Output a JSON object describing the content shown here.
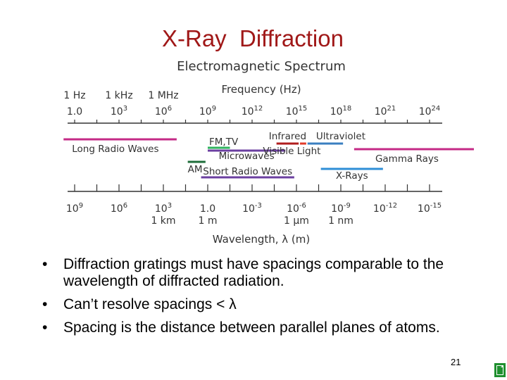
{
  "slide": {
    "title": "X-Ray  Diffraction",
    "page_number": "21",
    "bullets": [
      "Diffraction gratings must have spacings comparable to the wavelength of diffracted radiation.",
      "Can’t resolve spacings < λ",
      "Spacing is the distance between parallel planes of atoms."
    ]
  },
  "diagram": {
    "title": "Electromagnetic Spectrum",
    "frequency_axis_label": "Frequency (Hz)",
    "wavelength_axis_label": "Wavelength, λ (m)",
    "frequency_unit_labels": [
      {
        "text": "1 Hz",
        "tick": 0
      },
      {
        "text": "1 kHz",
        "tick": 1
      },
      {
        "text": "1 MHz",
        "tick": 2
      }
    ],
    "frequency_ticks": [
      {
        "base": "1.0",
        "exp": ""
      },
      {
        "base": "10",
        "exp": "3"
      },
      {
        "base": "10",
        "exp": "6"
      },
      {
        "base": "10",
        "exp": "9"
      },
      {
        "base": "10",
        "exp": "12"
      },
      {
        "base": "10",
        "exp": "15"
      },
      {
        "base": "10",
        "exp": "18"
      },
      {
        "base": "10",
        "exp": "21"
      },
      {
        "base": "10",
        "exp": "24"
      }
    ],
    "wavelength_ticks": [
      {
        "base": "10",
        "exp": "9",
        "unit": ""
      },
      {
        "base": "10",
        "exp": "6",
        "unit": ""
      },
      {
        "base": "10",
        "exp": "3",
        "unit": "1 km"
      },
      {
        "base": "1.0",
        "exp": "",
        "unit": "1 m"
      },
      {
        "base": "10",
        "exp": "-3",
        "unit": ""
      },
      {
        "base": "10",
        "exp": "-6",
        "unit": "1 μm"
      },
      {
        "base": "10",
        "exp": "-9",
        "unit": "1 nm"
      },
      {
        "base": "10",
        "exp": "-12",
        "unit": ""
      },
      {
        "base": "10",
        "exp": "-15",
        "unit": ""
      }
    ],
    "bands": [
      {
        "name": "Long Radio Waves",
        "color": "#c42a86",
        "start": -0.25,
        "end": 2.3
      },
      {
        "name": "AM",
        "color": "#1e6e3a",
        "start": 2.55,
        "end": 2.95
      },
      {
        "name": "FM,TV",
        "color": "#2fb35e",
        "start": 3.0,
        "end": 3.5
      },
      {
        "name": "Microwaves",
        "color": "#6b3fa0",
        "start": 3.0,
        "end": 4.75
      },
      {
        "name": "Short Radio Waves",
        "color": "#6b3fa0",
        "start": 2.85,
        "end": 4.95
      },
      {
        "name": "Infrared",
        "color": "#b01e1e",
        "start": 4.55,
        "end": 5.05
      },
      {
        "name": "Visible Light",
        "color": "#e03a2a",
        "start": 5.08,
        "end": 5.22
      },
      {
        "name": "Ultraviolet",
        "color": "#3a7fc0",
        "start": 5.25,
        "end": 6.05
      },
      {
        "name": "X-Rays",
        "color": "#2e8ed6",
        "start": 5.55,
        "end": 6.95
      },
      {
        "name": "Gamma Rays",
        "color": "#c42a86",
        "start": 6.3,
        "end": 9.0
      }
    ]
  }
}
